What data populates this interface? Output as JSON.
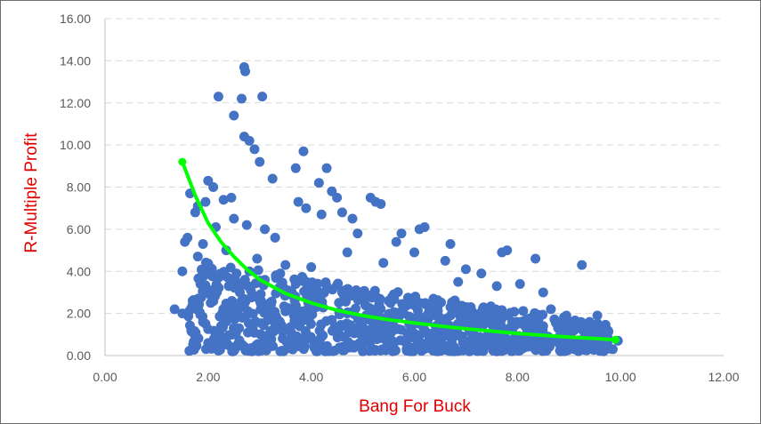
{
  "chart_data": {
    "type": "scatter",
    "title": "",
    "xlabel": "Bang For Buck",
    "ylabel": "R-Multiple Profit",
    "xlim": [
      0,
      12
    ],
    "ylim": [
      0,
      16
    ],
    "xticks": [
      "0.00",
      "2.00",
      "4.00",
      "6.00",
      "8.00",
      "10.00",
      "12.00"
    ],
    "yticks": [
      "0.00",
      "2.00",
      "4.00",
      "6.00",
      "8.00",
      "10.00",
      "12.00",
      "14.00",
      "16.00"
    ],
    "grid": "horizontal-dashed",
    "legend": "none",
    "colors": {
      "points": "#4472c4",
      "trend": "#00ff00",
      "axis_title": "#e00000",
      "tick": "#595959",
      "grid": "#d9d9d9"
    },
    "series": [
      {
        "values_xy": [
          [
            1.35,
            2.2
          ],
          [
            1.5,
            2.0
          ],
          [
            1.5,
            4.0
          ],
          [
            1.55,
            5.4
          ],
          [
            1.6,
            5.6
          ],
          [
            1.65,
            7.7
          ],
          [
            1.7,
            2.6
          ],
          [
            1.75,
            6.8
          ],
          [
            1.8,
            7.1
          ],
          [
            1.8,
            4.7
          ],
          [
            1.85,
            3.4
          ],
          [
            1.9,
            1.6
          ],
          [
            1.9,
            5.3
          ],
          [
            1.95,
            7.3
          ],
          [
            2.0,
            8.3
          ],
          [
            2.0,
            4.1
          ],
          [
            2.05,
            2.5
          ],
          [
            2.1,
            8.0
          ],
          [
            2.15,
            6.1
          ],
          [
            2.2,
            12.3
          ],
          [
            2.2,
            3.2
          ],
          [
            2.25,
            1.4
          ],
          [
            2.3,
            7.4
          ],
          [
            2.35,
            5.0
          ],
          [
            2.4,
            2.2
          ],
          [
            2.45,
            7.5
          ],
          [
            2.5,
            11.4
          ],
          [
            2.5,
            6.5
          ],
          [
            2.55,
            3.9
          ],
          [
            2.6,
            1.3
          ],
          [
            2.65,
            12.2
          ],
          [
            2.7,
            13.7
          ],
          [
            2.7,
            10.4
          ],
          [
            2.72,
            13.5
          ],
          [
            2.75,
            6.2
          ],
          [
            2.8,
            10.2
          ],
          [
            2.85,
            0.2
          ],
          [
            2.9,
            9.8
          ],
          [
            2.95,
            4.6
          ],
          [
            3.0,
            9.2
          ],
          [
            3.05,
            12.3
          ],
          [
            3.1,
            6.0
          ],
          [
            3.2,
            1.0
          ],
          [
            3.25,
            8.4
          ],
          [
            3.3,
            5.6
          ],
          [
            3.4,
            0.2
          ],
          [
            3.5,
            4.3
          ],
          [
            3.6,
            2.9
          ],
          [
            3.7,
            8.9
          ],
          [
            3.75,
            7.3
          ],
          [
            3.85,
            9.7
          ],
          [
            3.9,
            7.0
          ],
          [
            4.0,
            4.2
          ],
          [
            4.1,
            0.2
          ],
          [
            4.15,
            8.2
          ],
          [
            4.2,
            6.7
          ],
          [
            4.3,
            8.9
          ],
          [
            4.4,
            7.8
          ],
          [
            4.5,
            7.5
          ],
          [
            4.6,
            6.8
          ],
          [
            4.7,
            4.9
          ],
          [
            4.8,
            6.5
          ],
          [
            4.9,
            5.8
          ],
          [
            5.0,
            0.2
          ],
          [
            5.05,
            2.8
          ],
          [
            5.15,
            7.5
          ],
          [
            5.25,
            7.3
          ],
          [
            5.35,
            7.2
          ],
          [
            5.4,
            4.4
          ],
          [
            5.55,
            1.2
          ],
          [
            5.65,
            5.4
          ],
          [
            5.75,
            5.8
          ],
          [
            5.85,
            0.3
          ],
          [
            6.0,
            4.9
          ],
          [
            6.1,
            6.0
          ],
          [
            6.2,
            6.1
          ],
          [
            6.3,
            2.0
          ],
          [
            6.45,
            0.2
          ],
          [
            6.6,
            4.5
          ],
          [
            6.7,
            5.3
          ],
          [
            6.85,
            3.5
          ],
          [
            7.0,
            4.1
          ],
          [
            7.15,
            0.3
          ],
          [
            7.3,
            3.9
          ],
          [
            7.45,
            2.1
          ],
          [
            7.6,
            3.3
          ],
          [
            7.7,
            4.9
          ],
          [
            7.8,
            5.0
          ],
          [
            7.9,
            1.2
          ],
          [
            8.05,
            3.4
          ],
          [
            8.2,
            1.3
          ],
          [
            8.35,
            4.6
          ],
          [
            8.5,
            3.0
          ],
          [
            8.65,
            2.2
          ],
          [
            8.8,
            0.7
          ],
          [
            8.95,
            1.9
          ],
          [
            9.1,
            0.3
          ],
          [
            9.25,
            4.3
          ],
          [
            9.4,
            1.6
          ],
          [
            9.55,
            1.9
          ],
          [
            9.7,
            0.9
          ],
          [
            9.85,
            0.3
          ],
          [
            9.95,
            0.7
          ],
          [
            2.3,
            1.8
          ],
          [
            2.6,
            2.4
          ],
          [
            2.9,
            2.8
          ],
          [
            3.2,
            2.5
          ],
          [
            3.5,
            2.1
          ],
          [
            3.8,
            1.9
          ],
          [
            4.1,
            2.3
          ],
          [
            4.4,
            1.7
          ],
          [
            4.7,
            2.0
          ],
          [
            5.0,
            1.6
          ],
          [
            5.3,
            1.8
          ],
          [
            5.6,
            1.4
          ],
          [
            5.9,
            1.5
          ],
          [
            6.2,
            1.2
          ],
          [
            6.5,
            1.3
          ],
          [
            6.8,
            1.0
          ],
          [
            7.1,
            1.1
          ],
          [
            7.4,
            0.8
          ],
          [
            7.7,
            0.9
          ],
          [
            8.0,
            0.7
          ],
          [
            8.3,
            0.8
          ],
          [
            8.6,
            0.6
          ],
          [
            8.9,
            0.6
          ],
          [
            9.2,
            0.5
          ],
          [
            9.5,
            0.5
          ],
          [
            2.4,
            3.3
          ],
          [
            2.8,
            4.0
          ],
          [
            3.1,
            3.6
          ],
          [
            3.4,
            3.9
          ],
          [
            3.7,
            3.4
          ],
          [
            4.0,
            3.1
          ],
          [
            4.3,
            3.3
          ],
          [
            4.6,
            3.0
          ],
          [
            4.9,
            2.7
          ],
          [
            5.2,
            2.9
          ],
          [
            5.5,
            2.6
          ],
          [
            5.8,
            2.4
          ],
          [
            6.1,
            2.5
          ],
          [
            6.4,
            2.2
          ],
          [
            6.7,
            2.3
          ],
          [
            7.0,
            2.0
          ],
          [
            7.3,
            1.8
          ],
          [
            7.6,
            1.9
          ],
          [
            7.9,
            1.6
          ],
          [
            8.2,
            1.7
          ],
          [
            8.5,
            1.4
          ],
          [
            8.8,
            1.5
          ],
          [
            9.1,
            1.2
          ],
          [
            9.4,
            1.1
          ],
          [
            9.7,
            1.3
          ]
        ]
      },
      {
        "values_xy": [
          [
            1.5,
            9.2
          ],
          [
            1.75,
            7.6
          ],
          [
            2.0,
            6.3
          ],
          [
            2.25,
            5.4
          ],
          [
            2.5,
            4.7
          ],
          [
            2.75,
            4.1
          ],
          [
            3.0,
            3.6
          ],
          [
            3.5,
            2.95
          ],
          [
            4.0,
            2.5
          ],
          [
            4.5,
            2.15
          ],
          [
            5.0,
            1.9
          ],
          [
            5.5,
            1.7
          ],
          [
            6.0,
            1.55
          ],
          [
            6.5,
            1.4
          ],
          [
            7.0,
            1.27
          ],
          [
            7.5,
            1.16
          ],
          [
            8.0,
            1.05
          ],
          [
            8.5,
            0.96
          ],
          [
            9.0,
            0.88
          ],
          [
            9.5,
            0.81
          ],
          [
            9.9,
            0.75
          ]
        ]
      }
    ]
  }
}
